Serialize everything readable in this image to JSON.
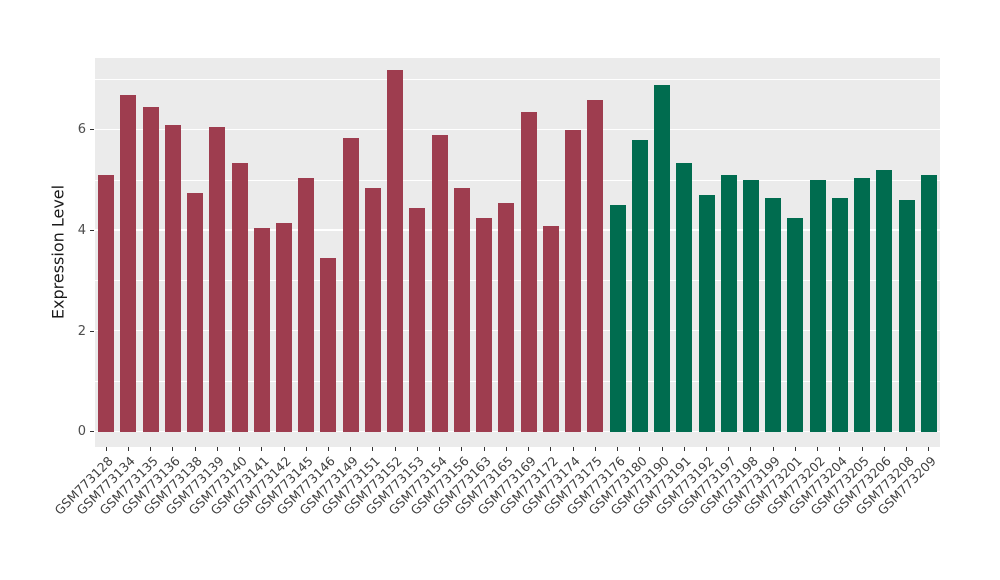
{
  "chart_data": {
    "type": "bar",
    "title": "",
    "xlabel": "",
    "ylabel": "Expression Level",
    "ylim": [
      0,
      7.45
    ],
    "yticks": [
      0,
      2,
      4,
      6
    ],
    "yticks_minor": [
      1,
      3,
      5,
      7
    ],
    "grid": true,
    "legend_position": "none",
    "panel_background": "#EBEBEB",
    "grid_color": "#FFFFFF",
    "colors": {
      "group1": "#9E3D4F",
      "group2": "#006C4F"
    },
    "group_split_index": 23,
    "categories": [
      "GSM773128",
      "GSM773134",
      "GSM773135",
      "GSM773136",
      "GSM773138",
      "GSM773139",
      "GSM773140",
      "GSM773141",
      "GSM773142",
      "GSM773145",
      "GSM773146",
      "GSM773149",
      "GSM773151",
      "GSM773152",
      "GSM773153",
      "GSM773154",
      "GSM773156",
      "GSM773163",
      "GSM773165",
      "GSM773169",
      "GSM773172",
      "GSM773174",
      "GSM773175",
      "GSM773176",
      "GSM773180",
      "GSM773190",
      "GSM773191",
      "GSM773192",
      "GSM773197",
      "GSM773198",
      "GSM773199",
      "GSM773201",
      "GSM773202",
      "GSM773204",
      "GSM773205",
      "GSM773206",
      "GSM773208",
      "GSM773209"
    ],
    "values": [
      5.1,
      6.7,
      6.45,
      6.1,
      4.75,
      6.05,
      5.35,
      4.05,
      4.15,
      5.05,
      3.45,
      5.85,
      4.85,
      7.2,
      4.45,
      5.9,
      4.85,
      4.25,
      4.55,
      6.35,
      4.1,
      6.0,
      6.6,
      4.5,
      5.8,
      6.9,
      5.35,
      4.7,
      5.1,
      5.0,
      4.65,
      4.25,
      5.0,
      4.65,
      5.05,
      5.2,
      4.6,
      5.1
    ]
  }
}
